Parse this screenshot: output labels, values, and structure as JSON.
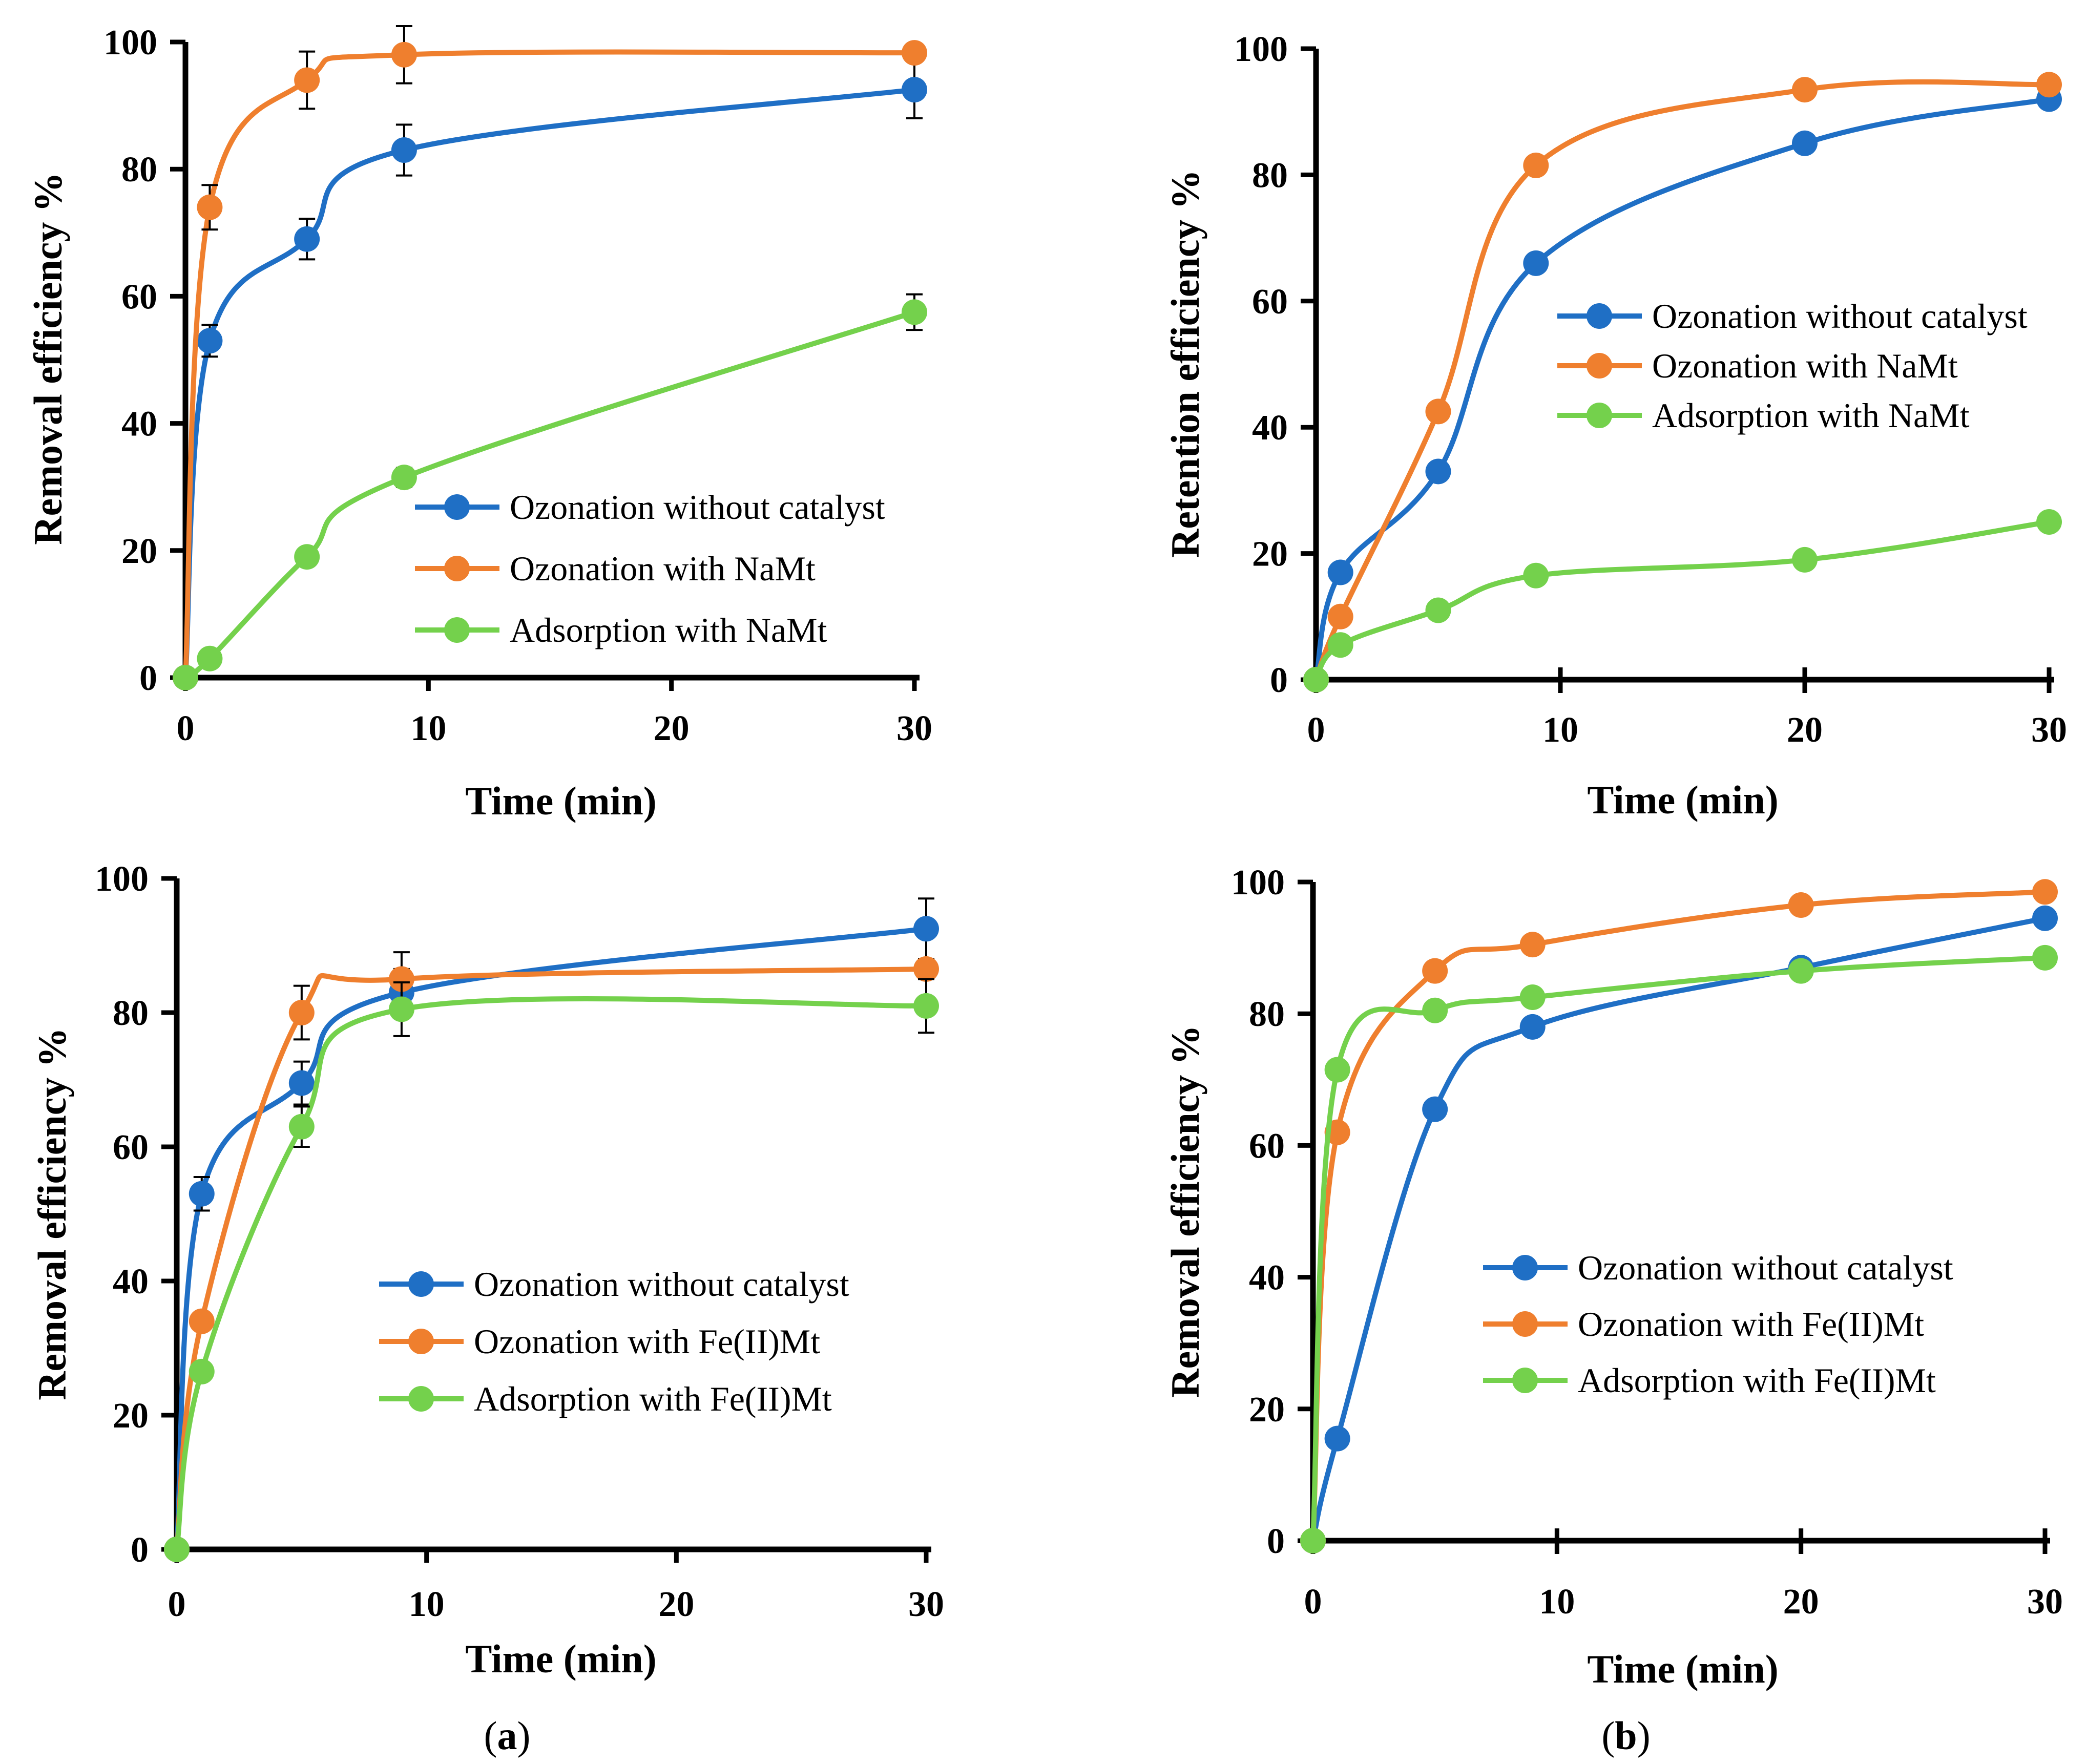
{
  "panel_labels": [
    {
      "prefix": "(",
      "letter": "a",
      "suffix": ")"
    },
    {
      "prefix": "(",
      "letter": "b",
      "suffix": ")"
    }
  ],
  "chart_data": [
    {
      "type": "line",
      "title": "",
      "xlabel": "Time (min)",
      "ylabel": "Removal efficiency %",
      "xlim": [
        0,
        30
      ],
      "ylim": [
        0,
        100
      ],
      "xticks": [
        0,
        10,
        20,
        30
      ],
      "yticks": [
        0,
        20,
        40,
        60,
        80,
        100
      ],
      "legend_position": "lower-right",
      "error_bars": true,
      "series": [
        {
          "name": "Ozonation without catalyst",
          "color": "#1f6fc5",
          "x": [
            0,
            1,
            5,
            9,
            30
          ],
          "y": [
            0,
            53,
            69,
            83,
            92.5
          ],
          "err": [
            0,
            2.5,
            3.2,
            4,
            4.5
          ]
        },
        {
          "name": "Ozonation with NaMt",
          "color": "#ef7f2e",
          "x": [
            0,
            1,
            5,
            9,
            30
          ],
          "y": [
            0,
            74,
            94,
            98,
            98.3
          ],
          "err": [
            0,
            3.5,
            4.5,
            4.5,
            0
          ]
        },
        {
          "name": "Adsorption with NaMt",
          "color": "#74d14c",
          "x": [
            0,
            1,
            5,
            9,
            30
          ],
          "y": [
            0,
            3,
            19,
            31.5,
            57.5
          ],
          "err": [
            0,
            0.5,
            0.5,
            1.5,
            2.8
          ]
        }
      ]
    },
    {
      "type": "line",
      "title": "",
      "xlabel": "Time (min)",
      "ylabel": "Retention efficiency %",
      "xlim": [
        0,
        30
      ],
      "ylim": [
        0,
        100
      ],
      "xticks": [
        0,
        10,
        20,
        30
      ],
      "yticks": [
        0,
        20,
        40,
        60,
        80,
        100
      ],
      "legend_position": "center-right",
      "error_bars": false,
      "series": [
        {
          "name": "Ozonation without catalyst",
          "color": "#1f6fc5",
          "x": [
            0,
            1,
            5,
            9,
            20,
            30
          ],
          "y": [
            0,
            17,
            33,
            66,
            85,
            92
          ]
        },
        {
          "name": "Ozonation with NaMt",
          "color": "#ef7f2e",
          "x": [
            0,
            1,
            5,
            9,
            20,
            30
          ],
          "y": [
            0,
            10,
            42.5,
            81.5,
            93.5,
            94.3
          ]
        },
        {
          "name": "Adsorption with NaMt",
          "color": "#74d14c",
          "x": [
            0,
            1,
            5,
            9,
            20,
            30
          ],
          "y": [
            0,
            5.5,
            11,
            16.5,
            19,
            25
          ]
        }
      ]
    },
    {
      "type": "line",
      "title": "",
      "xlabel": "Time (min)",
      "ylabel": "Removal efficiency %",
      "xlim": [
        0,
        30
      ],
      "ylim": [
        0,
        100
      ],
      "xticks": [
        0,
        10,
        20,
        30
      ],
      "yticks": [
        0,
        20,
        40,
        60,
        80,
        100
      ],
      "legend_position": "lower-right",
      "error_bars": true,
      "series": [
        {
          "name": "Ozonation without catalyst",
          "color": "#1f6fc5",
          "x": [
            0,
            1,
            5,
            9,
            30
          ],
          "y": [
            0,
            53,
            69.5,
            83,
            92.5
          ],
          "err": [
            0,
            2.5,
            3.2,
            3.5,
            4.5
          ]
        },
        {
          "name": "Ozonation with Fe(II)Mt",
          "color": "#ef7f2e",
          "x": [
            0,
            1,
            5,
            9,
            30
          ],
          "y": [
            0,
            34,
            80,
            85,
            86.5
          ],
          "err": [
            0,
            0,
            4,
            4,
            0
          ]
        },
        {
          "name": "Adsorption with Fe(II)Mt",
          "color": "#74d14c",
          "x": [
            0,
            1,
            5,
            9,
            30
          ],
          "y": [
            0,
            26.5,
            63,
            80.5,
            81
          ],
          "err": [
            0,
            0,
            3,
            4,
            4
          ]
        }
      ]
    },
    {
      "type": "line",
      "title": "",
      "xlabel": "Time (min)",
      "ylabel": "Removal efficiency %",
      "xlim": [
        0,
        30
      ],
      "ylim": [
        0,
        100
      ],
      "xticks": [
        0,
        10,
        20,
        30
      ],
      "yticks": [
        0,
        20,
        40,
        60,
        80,
        100
      ],
      "legend_position": "center-right",
      "error_bars": false,
      "series": [
        {
          "name": "Ozonation without catalyst",
          "color": "#1f6fc5",
          "x": [
            0,
            1,
            5,
            9,
            20,
            30
          ],
          "y": [
            0,
            15.5,
            65.5,
            78,
            87,
            94.5
          ]
        },
        {
          "name": "Ozonation with Fe(II)Mt",
          "color": "#ef7f2e",
          "x": [
            0,
            1,
            5,
            9,
            20,
            30
          ],
          "y": [
            0,
            62,
            86.5,
            90.5,
            96.5,
            98.5
          ]
        },
        {
          "name": "Adsorption with Fe(II)Mt",
          "color": "#74d14c",
          "x": [
            0,
            1,
            5,
            9,
            20,
            30
          ],
          "y": [
            0,
            71.5,
            80.5,
            82.5,
            86.5,
            88.5
          ]
        }
      ]
    }
  ]
}
